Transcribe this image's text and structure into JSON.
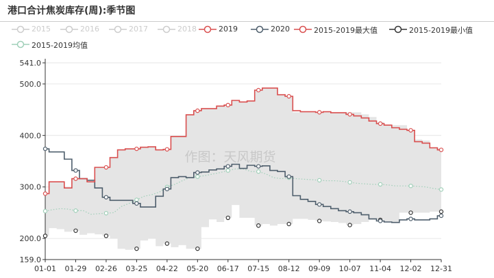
{
  "page": {
    "title": "港口合计焦炭库存(周):季节图"
  },
  "watermark": "作图：天风期货",
  "legend_items": [
    {
      "label": "2015",
      "color": "#cccccc",
      "active": false
    },
    {
      "label": "2016",
      "color": "#cccccc",
      "active": false
    },
    {
      "label": "2017",
      "color": "#cccccc",
      "active": false
    },
    {
      "label": "2018",
      "color": "#cccccc",
      "active": false
    },
    {
      "label": "2019",
      "color": "#d94e4e",
      "active": true
    },
    {
      "label": "2020",
      "color": "#4d5d6b",
      "active": true
    },
    {
      "label": "2015-2019最大值",
      "color": "#d94e4e",
      "active": true
    },
    {
      "label": "2015-2019最小值",
      "color": "#333333",
      "active": true
    },
    {
      "label": "2015-2019均值",
      "color": "#9fcfb8",
      "active": true
    }
  ],
  "chart_data": {
    "type": "line",
    "title": "港口合计焦炭库存(周):季节图",
    "x_ticks": [
      "01-01",
      "01-29",
      "02-26",
      "03-25",
      "04-22",
      "05-20",
      "06-17",
      "07-15",
      "08-12",
      "09-09",
      "10-07",
      "11-04",
      "12-02",
      "12-31"
    ],
    "y_ticks": [
      {
        "value": 159,
        "label": "159.0"
      },
      {
        "value": 200,
        "label": "200.0"
      },
      {
        "value": 300,
        "label": "300.0"
      },
      {
        "value": 400,
        "label": "400.0"
      },
      {
        "value": 500,
        "label": "500.0"
      },
      {
        "value": 541,
        "label": "541.0"
      }
    ],
    "ylim": [
      159,
      541
    ],
    "weeks": 53,
    "band": {
      "fill": "#e5e5e5",
      "lower_series": "2015-2019最小值",
      "upper_series": "2015-2019最大值"
    },
    "series": [
      {
        "name": "2015-2019最大值",
        "style": "band-edge",
        "color": "#e0e0e0",
        "values": [
          287,
          310,
          310,
          298,
          316,
          316,
          310,
          338,
          338,
          357,
          372,
          374,
          374,
          377,
          378,
          372,
          373,
          398,
          398,
          440,
          448,
          452,
          452,
          457,
          459,
          468,
          465,
          467,
          488,
          492,
          492,
          479,
          476,
          474,
          466,
          461,
          460,
          468,
          471,
          485,
          487,
          487,
          480,
          480,
          474,
          462,
          450,
          450,
          448,
          455,
          455,
          455,
          450
        ]
      },
      {
        "name": "2020",
        "style": "step",
        "color": "#4d5d6b",
        "markers": [
          0,
          4,
          8,
          12,
          16,
          20,
          24,
          28,
          32,
          36,
          40,
          44,
          48,
          52
        ],
        "values": [
          374,
          368,
          368,
          354,
          332,
          316,
          313,
          298,
          280,
          274,
          274,
          274,
          268,
          261,
          261,
          282,
          296,
          318,
          320,
          318,
          328,
          329,
          333,
          335,
          340,
          344,
          336,
          342,
          340,
          341,
          332,
          330,
          320,
          306,
          293,
          293,
          276,
          270,
          262,
          260,
          264,
          264,
          264,
          272,
          278,
          278,
          282,
          288,
          288,
          292,
          286,
          284,
          292
        ]
      },
      {
        "name": "2015-2019最小值",
        "style": "band-edge",
        "color": "#e0e0e0",
        "values": [
          205,
          220,
          218,
          213,
          215,
          207,
          210,
          208,
          205,
          200,
          180,
          178,
          180,
          196,
          200,
          185,
          190,
          183,
          187,
          180,
          180,
          222,
          237,
          232,
          240,
          265,
          240,
          240,
          225,
          228,
          225,
          228,
          228,
          222,
          228,
          225,
          225,
          260,
          247,
          250,
          250,
          250,
          247,
          249,
          255,
          260,
          260,
          250,
          250,
          250,
          248,
          238,
          244
        ]
      },
      {
        "name": "2015-2019均值",
        "style": "dotted",
        "color": "#9fcfb8",
        "markers": [
          0,
          4,
          8,
          12,
          16,
          20,
          24,
          28,
          32,
          36,
          40,
          44,
          48,
          52
        ],
        "values": [
          253,
          256,
          258,
          257,
          254,
          254,
          247,
          248,
          249,
          250,
          262,
          268,
          275,
          282,
          285,
          290,
          300,
          305,
          312,
          318,
          320,
          322,
          325,
          328,
          332,
          335,
          335,
          330,
          330,
          325,
          318,
          316,
          318,
          320,
          325,
          326,
          328,
          330,
          332,
          334,
          331,
          330,
          333,
          332,
          325,
          325,
          322,
          320,
          318,
          316,
          315,
          312,
          300
        ]
      },
      {
        "name": "2019",
        "style": "step",
        "color": "#d94e4e",
        "markers": [
          0,
          4,
          8,
          12,
          16,
          20,
          24,
          28,
          32,
          36,
          40,
          44,
          48,
          52
        ],
        "values": [
          287,
          310,
          310,
          298,
          316,
          316,
          310,
          338,
          338,
          357,
          372,
          374,
          374,
          377,
          378,
          372,
          373,
          398,
          398,
          440,
          448,
          452,
          452,
          457,
          459,
          468,
          465,
          467,
          488,
          492,
          492,
          479,
          476,
          474,
          466,
          461,
          460,
          468,
          471,
          485,
          487,
          487,
          480,
          480,
          474,
          462,
          450,
          450,
          448,
          455,
          455,
          455,
          450
        ]
      }
    ],
    "overlay": {
      "2019_tail": [
        448,
        446,
        446,
        445,
        446,
        444,
        444,
        441,
        438,
        434,
        428,
        423,
        420,
        415,
        412,
        410,
        388,
        385,
        376,
        372
      ],
      "2020_tail": [
        283,
        276,
        272,
        266,
        262,
        258,
        254,
        252,
        250,
        246,
        238,
        234,
        232,
        231,
        236,
        238,
        236,
        236,
        238,
        244
      ],
      "max_tail": [
        445,
        445,
        445,
        445,
        445,
        445,
        445,
        445,
        445,
        441,
        436,
        426,
        420,
        420,
        420,
        410,
        392,
        390,
        375,
        375
      ],
      "min_tail": [
        238,
        238,
        236,
        234,
        233,
        232,
        230,
        226,
        228,
        232,
        236,
        236,
        232,
        232,
        250,
        250,
        250,
        250,
        252,
        252
      ],
      "avg_tail": [
        316,
        315,
        314,
        313,
        312,
        312,
        311,
        309,
        307,
        306,
        305,
        305,
        304,
        302,
        302,
        302,
        301,
        300,
        297,
        295
      ]
    }
  }
}
